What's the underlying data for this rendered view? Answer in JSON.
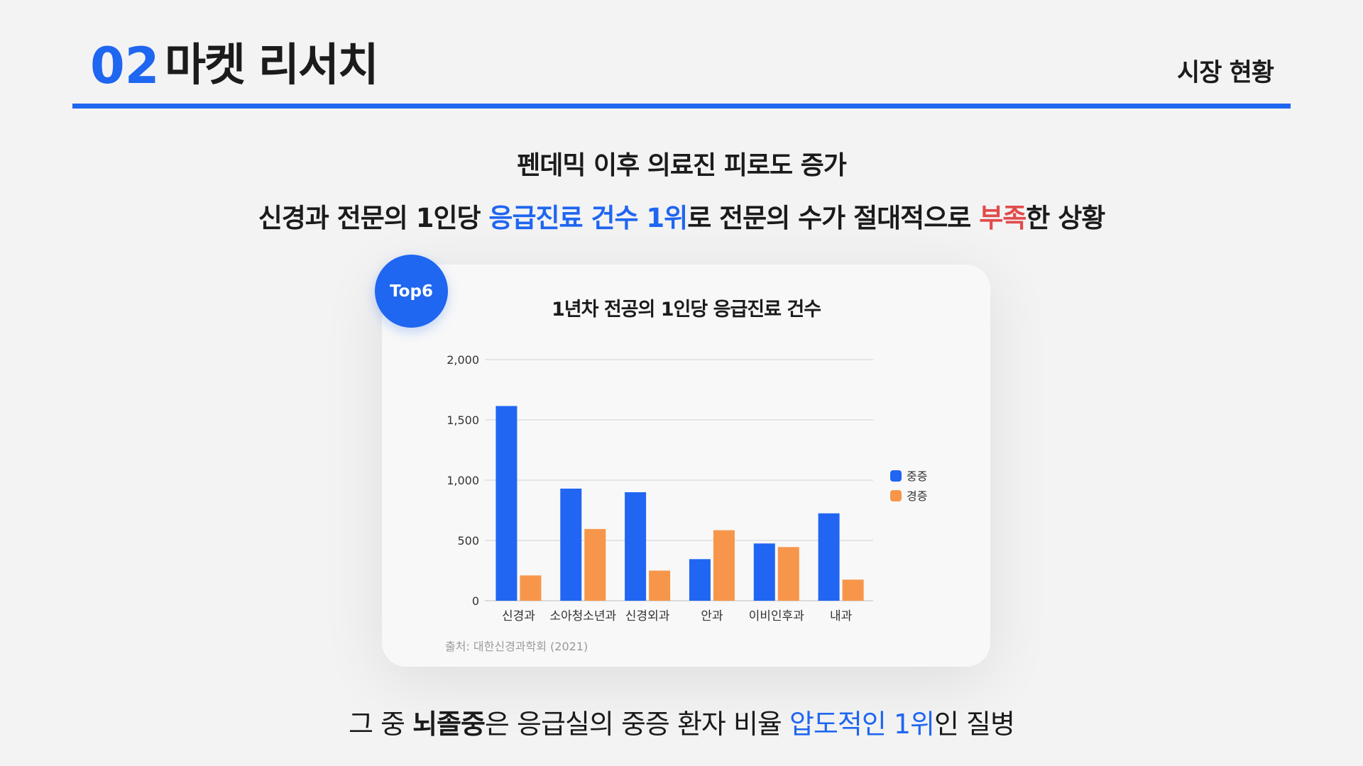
{
  "header": {
    "section_number": "02",
    "title": "마켓 리서치",
    "right_label": "시장 현황"
  },
  "headline": {
    "line1": "펜데믹 이후 의료진 피로도 증가",
    "line2_a": "신경과 전문의  1인당 ",
    "line2_b": "응급진료 건수 1위",
    "line2_c": "로 전문의 수가 절대적으로 ",
    "line2_d": "부족",
    "line2_e": "한 상황"
  },
  "badge": "Top6",
  "source": "출처: 대한신경과학회 (2021)",
  "bottom": {
    "a": "그 중 ",
    "b": "뇌졸중",
    "c": "은 응급실의 중증 환자 비율 ",
    "d": "압도적인 1위",
    "e": "인 질병"
  },
  "colors": {
    "accent": "#1f66f0",
    "severe": "#2166f2",
    "mild": "#f7964a",
    "warning": "#e24b4b"
  },
  "chart_data": {
    "type": "bar",
    "title": "1년차 전공의 1인당 응급진료 건수",
    "categories": [
      "신경과",
      "소아청소년과",
      "신경외과",
      "안과",
      "이비인후과",
      "내과"
    ],
    "series": [
      {
        "name": "중증",
        "color": "#2166f2",
        "values": [
          1615,
          930,
          900,
          345,
          475,
          725
        ]
      },
      {
        "name": "경증",
        "color": "#f7964a",
        "values": [
          210,
          595,
          250,
          585,
          445,
          175
        ]
      }
    ],
    "yticks": [
      0,
      500,
      1000,
      1500,
      2000
    ],
    "ytick_labels": [
      "0",
      "500",
      "1,000",
      "1,500",
      "2,000"
    ],
    "ylim": [
      0,
      2000
    ],
    "grid": true,
    "legend": "right"
  }
}
